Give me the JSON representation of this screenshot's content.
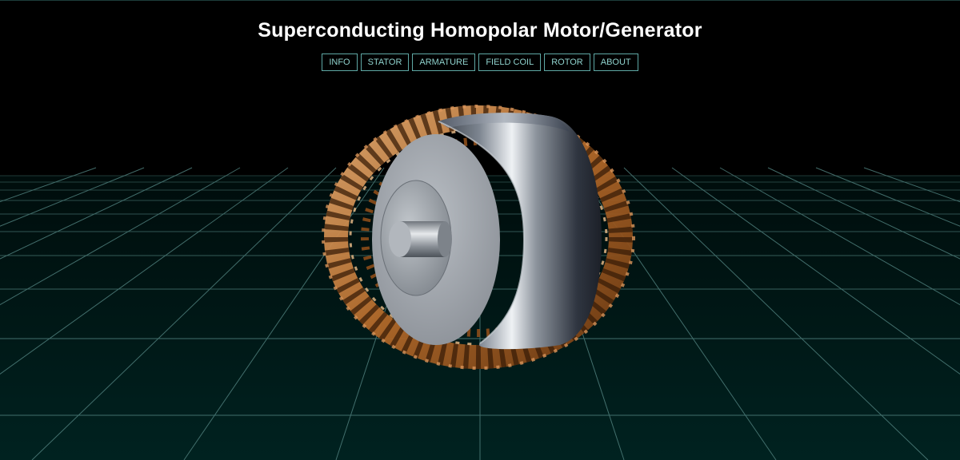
{
  "page": {
    "title": "Superconducting Homopolar Motor/Generator"
  },
  "nav": {
    "items": [
      {
        "label": "INFO",
        "name": "nav-info-button"
      },
      {
        "label": "STATOR",
        "name": "nav-stator-button"
      },
      {
        "label": "ARMATURE",
        "name": "nav-armature-button"
      },
      {
        "label": "FIELD COIL",
        "name": "nav-field-coil-button"
      },
      {
        "label": "ROTOR",
        "name": "nav-rotor-button"
      },
      {
        "label": "ABOUT",
        "name": "nav-about-button"
      }
    ]
  },
  "scene": {
    "background_color": "#000000",
    "floor_color": "#001e1d",
    "grid_color": "#5a8c8a",
    "copper_color": "#c98a4d",
    "steel_color": "#9aa0a8",
    "view_hint": "3d-model-viewer"
  }
}
